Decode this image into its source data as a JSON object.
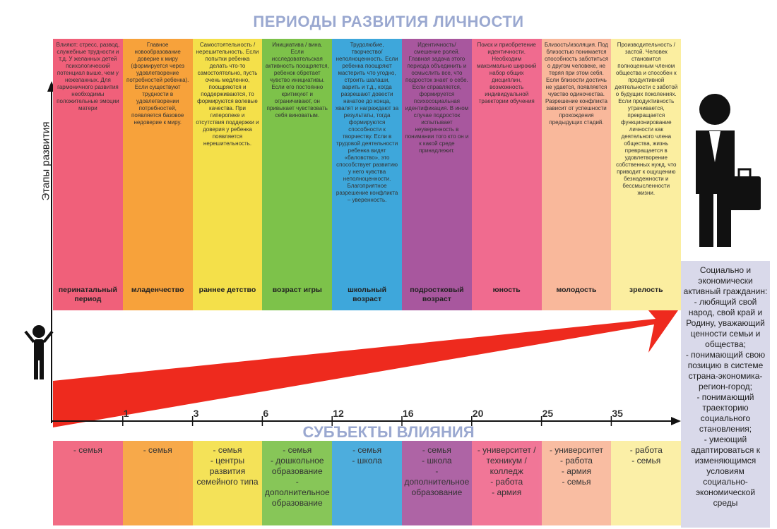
{
  "title": "ПЕРИОДЫ РАЗВИТИЯ ЛИЧНОСТИ",
  "y_axis_label": "Этапы развития",
  "subtitle": "СУБЪЕКТЫ ВЛИЯНИЯ",
  "periods": [
    {
      "description": "Влияют: стресс, развод, служебные трудности и т.д. У желанных детей психологический потенциал выше, чем у нежеланных. Для гармоничного развития необходимы положительные эмоции матери",
      "name": "перинатальный период",
      "influences": [
        "- семья"
      ],
      "color": "#f0607a"
    },
    {
      "description": "Главное новообразование доверие к миру (формируется через удовлетворение потребностей ребенка). Если существуют трудности в удовлетворении потребностей, появляется базовое недоверие к миру.",
      "name": "младенчество",
      "influences": [
        "- семья"
      ],
      "color": "#f7a23b"
    },
    {
      "description": "Самостоятельность / нерешительность. Если попытки ребенка делать что-то самостоятельно, пусть очень медленно, поощряются и поддерживаются, то формируются волевые качества. При гиперопеке и отсутствия поддержки и доверия у ребенка появляется нерешительность.",
      "name": "раннее детство",
      "influences": [
        "- семья",
        "- центры развития семейного типа"
      ],
      "color": "#f4e04a"
    },
    {
      "description": "Инициатива / вина. Если исследовательская активность поощряется, ребенок обретает чувство инициативы. Если его постоянно критикуют и ограничивают, он привыкает чувствовать себя виноватым.",
      "name": "возраст игры",
      "influences": [
        "- семья",
        "- дошкольное образование",
        "- дополнительное образование"
      ],
      "color": "#7dc24a"
    },
    {
      "description": "Трудолюбие, творчество/неполноценность. Если ребенка поощряют мастерить что угодно, строить шалаши, варить и т.д., когда разрешают довести начатое до конца, хвалят и награждают за результаты, тогда формируются способности к творчеству. Если в трудовой деятельности ребенка видят «баловство», это способствует развитию у него чувства неполноценности. Благоприятное разрешение конфликта – уверенность.",
      "name": "школьный возраст",
      "influences": [
        "- семья",
        "- школа"
      ],
      "color": "#3ea7db"
    },
    {
      "description": "Идентичность/смешение ролей. Главная задача этого периода объединить и осмыслить все, что подросток знает о себе. Если справляется, формируется психосоциальная идентификация. В ином случае подросток испытывает неуверенность в понимании того кто он и к какой среде принадлежит.",
      "name": "подростковый возраст",
      "influences": [
        "- семья",
        "- школа",
        "- дополнительное образование"
      ],
      "color": "#a8579e"
    },
    {
      "description": "Поиск и приобретение идентичности. Необходим максимально широкий набор общих дисциплин, возможность индивидуальной траектории обучения",
      "name": "юность",
      "influences": [
        "- университет / техникум / колледж",
        "- работа",
        "- армия"
      ],
      "color": "#f06b8f"
    },
    {
      "description": "Близость/изоляция. Под близостью понимается способность заботиться о другом человеке, не теряя при этом себя. Если близости достичь не удается, появляется чувство одиночества. Разрешение конфликта зависит от успешности прохождения предыдущих стадий.",
      "name": "молодость",
      "influences": [
        "- университет",
        "- работа",
        "- армия",
        "- семья"
      ],
      "color": "#f9b89b"
    },
    {
      "description": "Производительность / застой. Человек становится полноценным членом общества и способен к продуктивной деятельности с заботой о будущих поколениях. Если продуктивность утрачивается, прекращается функционирование личности как деятельного члена общества, жизнь превращается в удовлетворение собственных нужд, что приводит к ощущению безнадежности и бессмысленности жизни.",
      "name": "зрелость",
      "influences": [
        "- работа",
        "- семья"
      ],
      "color": "#fbeea0"
    }
  ],
  "ages": [
    "1",
    "3",
    "6",
    "12",
    "16",
    "20",
    "25",
    "35"
  ],
  "result": [
    "Социально и экономически активный гражданин:",
    "- любящий свой народ, свой край и Родину, уважающий ценности семьи и общества;",
    "- понимающий свою позицию в системе страна-экономика-регион-город;",
    "- понимающий траекторию социального становления;",
    "- умеющий адаптироваться к изменяющимся условиям социально-экономической среды"
  ]
}
